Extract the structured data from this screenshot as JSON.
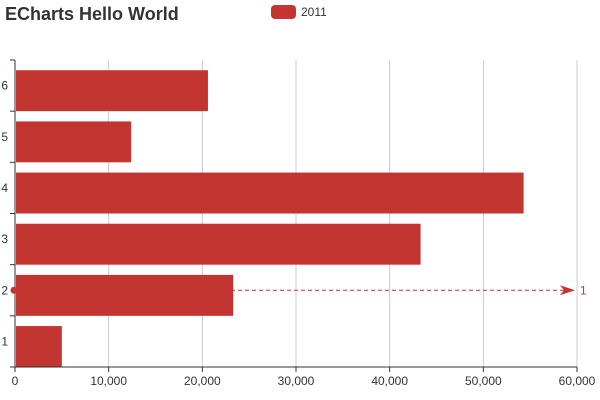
{
  "chart_data": {
    "type": "bar",
    "orientation": "horizontal",
    "title": "ECharts Hello World",
    "categories": [
      "1",
      "2",
      "3",
      "4",
      "5",
      "6"
    ],
    "series": [
      {
        "name": "2011",
        "values": [
          5000,
          23300,
          43300,
          54300,
          12400,
          20600
        ]
      }
    ],
    "xlim": [
      0,
      60000
    ],
    "xticks": [
      "0",
      "10,000",
      "20,000",
      "30,000",
      "40,000",
      "50,000",
      "60,000"
    ],
    "grid": true,
    "legend_position": "top",
    "markline": {
      "category": "2",
      "label": "1"
    },
    "colors": {
      "bar": "#c23531",
      "axis": "#333333",
      "grid": "#cccccc"
    }
  }
}
